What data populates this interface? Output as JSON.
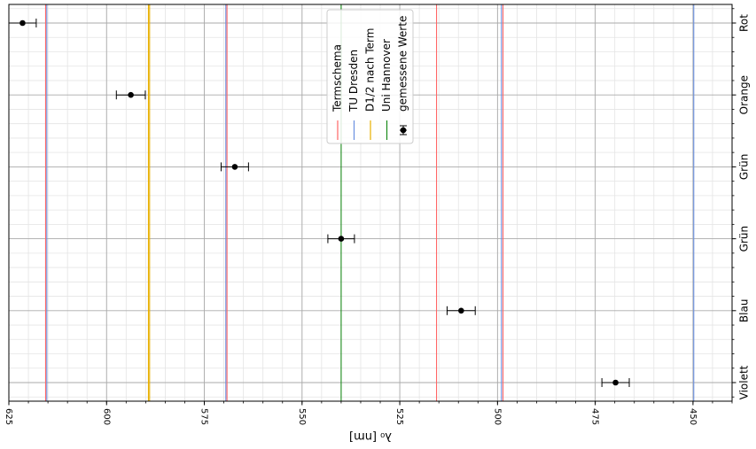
{
  "chart_data": {
    "type": "scatter",
    "title": "",
    "xlabel": "λ₀ [nm]",
    "ylabel": "",
    "x_inverted": true,
    "xlim": [
      625,
      440
    ],
    "x_ticks": [
      625,
      600,
      575,
      550,
      525,
      500,
      475,
      450
    ],
    "x_minor_step": 5,
    "categories": [
      "Violett",
      "Blau",
      "Grün",
      "Grün",
      "Orange",
      "Rot"
    ],
    "grid": true,
    "legend_position": "top-center",
    "measured": {
      "name": "gemessene Werte",
      "points": [
        {
          "category": "Rot",
          "x": 621.5,
          "xerr": 3.5
        },
        {
          "category": "Orange",
          "x": 593.8,
          "xerr": 3.7
        },
        {
          "category": "Grün",
          "x": 567.2,
          "xerr": 3.5
        },
        {
          "category": "Grün",
          "x": 540.0,
          "xerr": 3.4
        },
        {
          "category": "Blau",
          "x": 509.3,
          "xerr": 3.6
        },
        {
          "category": "Violett",
          "x": 469.8,
          "xerr": 3.5
        }
      ]
    },
    "reference_lines": [
      {
        "name": "Termschema",
        "color": "#ff6666",
        "values": [
          615.6,
          569.2,
          515.6,
          498.6
        ]
      },
      {
        "name": "TU Dresden",
        "color": "#6a8fe0",
        "values": [
          615.3,
          569.5,
          499.0,
          449.8
        ]
      },
      {
        "name": "D1/2 nach Term",
        "color": "#e8b000",
        "values": [
          589.3,
          589.0
        ]
      },
      {
        "name": "Uni Hannover",
        "color": "#1a8a1a",
        "values": [
          540.0
        ]
      }
    ],
    "legend": [
      "Termschema",
      "TU Dresden",
      "D1/2 nach Term",
      "Uni Hannover",
      "gemessene Werte"
    ]
  }
}
